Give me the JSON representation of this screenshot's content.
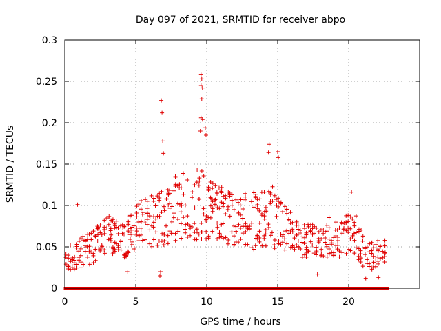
{
  "chart_data": {
    "type": "scatter",
    "title": "Day 097 of 2021, SRMTID for receiver abpo",
    "xlabel": "GPS time / hours",
    "ylabel": "SRMTID / TECUs",
    "xlim": [
      0,
      25
    ],
    "ylim": [
      0,
      0.3
    ],
    "x_ticks": [
      0,
      5,
      10,
      15,
      20
    ],
    "x_tick_labels": [
      "0",
      "5",
      "10",
      "15",
      "20"
    ],
    "y_ticks": [
      0,
      0.05,
      0.1,
      0.15,
      0.2,
      0.25,
      0.3
    ],
    "y_tick_labels": [
      "0",
      "0.05",
      "0.1",
      "0.15",
      "0.2",
      "0.25",
      "0.3"
    ],
    "grid": true,
    "marker": "plus",
    "series_color": "#e00000",
    "envelope": {
      "x": [
        0,
        0.5,
        1,
        1.5,
        2,
        2.5,
        3,
        3.5,
        4,
        4.5,
        5,
        5.5,
        6,
        6.5,
        7,
        7.5,
        8,
        8.5,
        9,
        9.5,
        10,
        10.5,
        11,
        11.5,
        12,
        12.5,
        13,
        13.5,
        14,
        14.5,
        15,
        15.5,
        16,
        16.5,
        17,
        17.5,
        18,
        18.5,
        19,
        19.5,
        20,
        20.5,
        21,
        21.5,
        22,
        22.6
      ],
      "mid": [
        0.035,
        0.038,
        0.042,
        0.045,
        0.05,
        0.058,
        0.066,
        0.062,
        0.055,
        0.06,
        0.072,
        0.085,
        0.082,
        0.078,
        0.088,
        0.09,
        0.1,
        0.1,
        0.1,
        0.105,
        0.095,
        0.09,
        0.088,
        0.085,
        0.08,
        0.082,
        0.085,
        0.08,
        0.082,
        0.085,
        0.082,
        0.075,
        0.068,
        0.058,
        0.055,
        0.055,
        0.058,
        0.062,
        0.06,
        0.058,
        0.068,
        0.065,
        0.045,
        0.038,
        0.04,
        0.042
      ],
      "spread": [
        0.015,
        0.018,
        0.02,
        0.02,
        0.02,
        0.022,
        0.022,
        0.022,
        0.022,
        0.025,
        0.028,
        0.03,
        0.03,
        0.035,
        0.04,
        0.04,
        0.04,
        0.04,
        0.045,
        0.045,
        0.04,
        0.035,
        0.035,
        0.032,
        0.032,
        0.032,
        0.035,
        0.035,
        0.035,
        0.04,
        0.04,
        0.03,
        0.025,
        0.022,
        0.022,
        0.022,
        0.022,
        0.025,
        0.022,
        0.022,
        0.025,
        0.025,
        0.02,
        0.018,
        0.018,
        0.018
      ]
    },
    "spikes": [
      {
        "x": 0.9,
        "y": 0.101
      },
      {
        "x": 6.8,
        "y": 0.227
      },
      {
        "x": 6.85,
        "y": 0.212
      },
      {
        "x": 6.9,
        "y": 0.178
      },
      {
        "x": 6.95,
        "y": 0.163
      },
      {
        "x": 6.7,
        "y": 0.015
      },
      {
        "x": 6.75,
        "y": 0.02
      },
      {
        "x": 9.6,
        "y": 0.258
      },
      {
        "x": 9.65,
        "y": 0.253
      },
      {
        "x": 9.6,
        "y": 0.245
      },
      {
        "x": 9.7,
        "y": 0.242
      },
      {
        "x": 9.65,
        "y": 0.229
      },
      {
        "x": 9.6,
        "y": 0.206
      },
      {
        "x": 9.7,
        "y": 0.204
      },
      {
        "x": 9.55,
        "y": 0.19
      },
      {
        "x": 9.9,
        "y": 0.194
      },
      {
        "x": 9.95,
        "y": 0.185
      },
      {
        "x": 14.4,
        "y": 0.174
      },
      {
        "x": 14.35,
        "y": 0.164
      },
      {
        "x": 15.0,
        "y": 0.165
      },
      {
        "x": 15.05,
        "y": 0.158
      },
      {
        "x": 20.2,
        "y": 0.116
      },
      {
        "x": 4.4,
        "y": 0.02
      },
      {
        "x": 17.8,
        "y": 0.017
      },
      {
        "x": 21.2,
        "y": 0.012
      },
      {
        "x": 22.1,
        "y": 0.013
      },
      {
        "x": 20.0,
        "y": 0.047
      }
    ],
    "zero_points": {
      "x_start": 0.05,
      "x_end": 22.7,
      "count": 118,
      "y": 0
    }
  }
}
